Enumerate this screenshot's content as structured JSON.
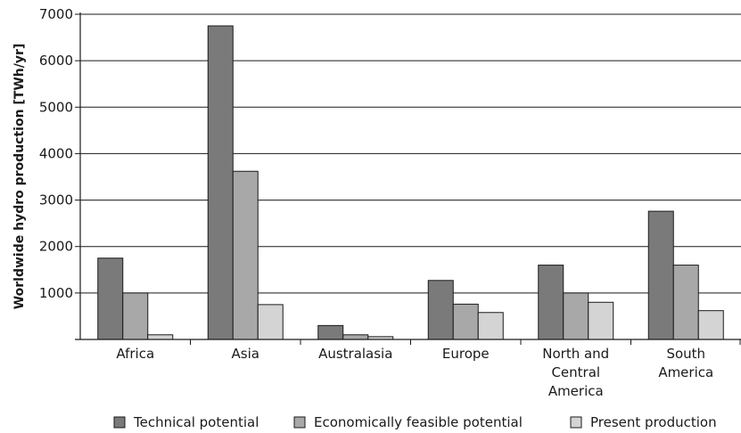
{
  "chart_data": {
    "type": "bar",
    "ylabel": "Worldwide hydro production  [TWh/yr]",
    "xlabel": "",
    "title": "",
    "ylim": [
      0,
      7000
    ],
    "yticks": [
      1000,
      2000,
      3000,
      4000,
      5000,
      6000,
      7000
    ],
    "grid": "horizontal",
    "legend_position": "bottom",
    "categories": [
      [
        "Africa"
      ],
      [
        "Asia"
      ],
      [
        "Australasia"
      ],
      [
        "Europe"
      ],
      [
        "North and",
        "Central",
        "America"
      ],
      [
        "South",
        "America"
      ]
    ],
    "series": [
      {
        "name": "Technical potential",
        "color": "#7a7a7a",
        "values": [
          1750,
          6750,
          300,
          1270,
          1600,
          2760
        ]
      },
      {
        "name": "Economically feasible potential",
        "color": "#a8a8a8",
        "values": [
          1000,
          3620,
          100,
          760,
          1000,
          1600
        ]
      },
      {
        "name": "Present production",
        "color": "#d4d4d4",
        "values": [
          100,
          750,
          60,
          580,
          800,
          620
        ]
      }
    ]
  }
}
